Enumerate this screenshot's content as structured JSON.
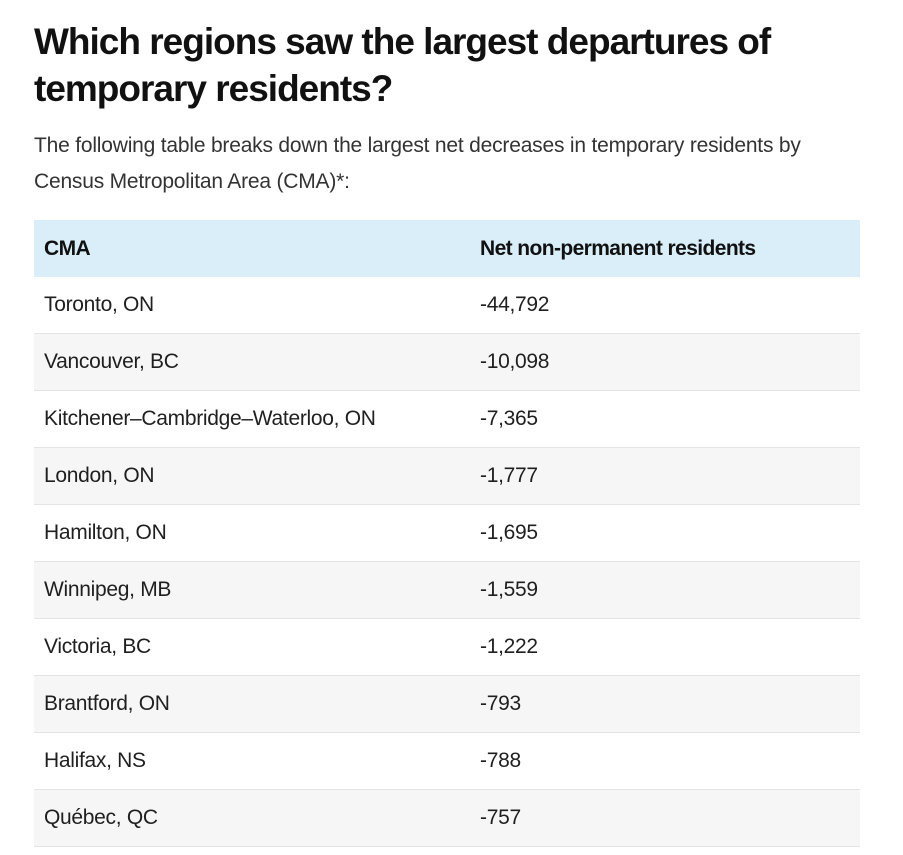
{
  "heading": "Which regions saw the largest departures of temporary residents?",
  "intro": "The following table breaks down the largest net decreases in temporary residents by Census Metropolitan Area (CMA)*:",
  "table": {
    "headers": {
      "cma": "CMA",
      "net": "Net non-permanent residents"
    },
    "rows": [
      {
        "cma": "Toronto, ON",
        "net": "-44,792"
      },
      {
        "cma": "Vancouver, BC",
        "net": "-10,098"
      },
      {
        "cma": "Kitchener–Cambridge–Waterloo, ON",
        "net": "-7,365"
      },
      {
        "cma": "London, ON",
        "net": "-1,777"
      },
      {
        "cma": "Hamilton, ON",
        "net": "-1,695"
      },
      {
        "cma": "Winnipeg, MB",
        "net": "-1,559"
      },
      {
        "cma": "Victoria, BC",
        "net": "-1,222"
      },
      {
        "cma": "Brantford, ON",
        "net": "-793"
      },
      {
        "cma": "Halifax, NS",
        "net": "-788"
      },
      {
        "cma": "Québec, QC",
        "net": "-757"
      }
    ]
  },
  "colors": {
    "header_background": "#d9eef8",
    "stripe_background": "#f6f6f6",
    "row_divider": "#e3e3e3"
  }
}
